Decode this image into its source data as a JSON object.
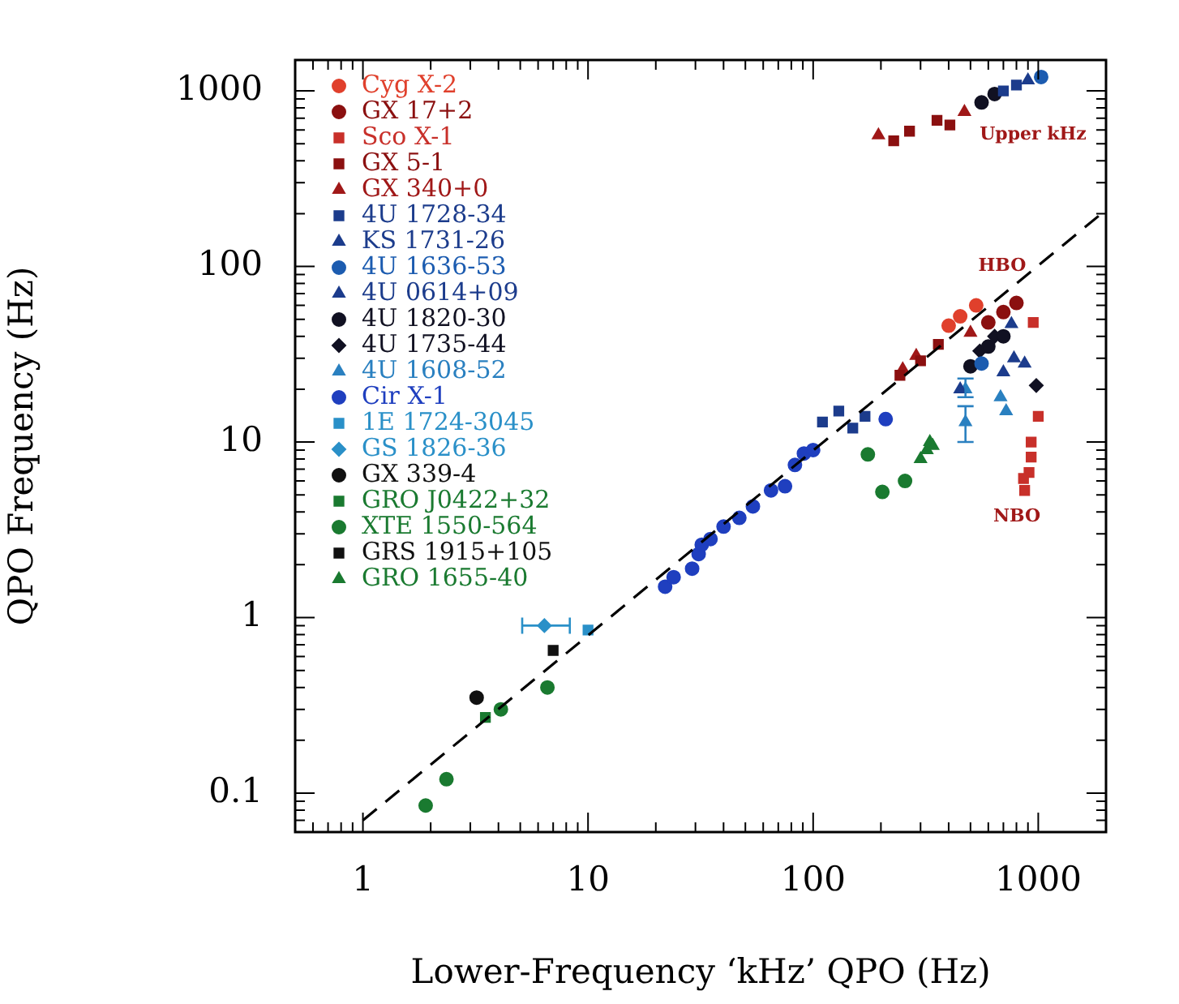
{
  "chart_data": {
    "type": "scatter",
    "xlabel": "Lower-Frequency ‘kHz’ QPO (Hz)",
    "ylabel": "QPO Frequency (Hz)",
    "log": "xy",
    "legend": "top left",
    "xlim": [
      0.5,
      2000
    ],
    "ylim": [
      0.06,
      1500
    ],
    "xticks": [
      {
        "value": 0.5,
        "label": null
      },
      {
        "value": 0.6,
        "label": null
      },
      {
        "value": 0.7,
        "label": null
      },
      {
        "value": 0.8,
        "label": null
      },
      {
        "value": 0.9,
        "label": null
      },
      1,
      {
        "value": 2,
        "label": null
      },
      {
        "value": 3,
        "label": null
      },
      {
        "value": 4,
        "label": null
      },
      {
        "value": 5,
        "label": null
      },
      {
        "value": 6,
        "label": null
      },
      {
        "value": 7,
        "label": null
      },
      {
        "value": 8,
        "label": null
      },
      {
        "value": 9,
        "label": null
      },
      10,
      {
        "value": 20,
        "label": null
      },
      {
        "value": 30,
        "label": null
      },
      {
        "value": 40,
        "label": null
      },
      {
        "value": 50,
        "label": null
      },
      {
        "value": 60,
        "label": null
      },
      {
        "value": 70,
        "label": null
      },
      {
        "value": 80,
        "label": null
      },
      {
        "value": 90,
        "label": null
      },
      100,
      {
        "value": 200,
        "label": null
      },
      {
        "value": 300,
        "label": null
      },
      {
        "value": 400,
        "label": null
      },
      {
        "value": 500,
        "label": null
      },
      {
        "value": 600,
        "label": null
      },
      {
        "value": 700,
        "label": null
      },
      {
        "value": 800,
        "label": null
      },
      {
        "value": 900,
        "label": null
      },
      1000,
      {
        "value": 2000,
        "label": null
      }
    ],
    "yticks": [
      {
        "value": 0.06,
        "label": null
      },
      {
        "value": 0.07,
        "label": null
      },
      {
        "value": 0.08,
        "label": null
      },
      {
        "value": 0.09,
        "label": null
      },
      0.1,
      {
        "value": 0.2,
        "label": null
      },
      {
        "value": 0.3,
        "label": null
      },
      {
        "value": 0.4,
        "label": null
      },
      {
        "value": 0.5,
        "label": null
      },
      {
        "value": 0.6,
        "label": null
      },
      {
        "value": 0.7,
        "label": null
      },
      {
        "value": 0.8,
        "label": null
      },
      {
        "value": 0.9,
        "label": null
      },
      1,
      {
        "value": 2,
        "label": null
      },
      {
        "value": 3,
        "label": null
      },
      {
        "value": 4,
        "label": null
      },
      {
        "value": 5,
        "label": null
      },
      {
        "value": 6,
        "label": null
      },
      {
        "value": 7,
        "label": null
      },
      {
        "value": 8,
        "label": null
      },
      {
        "value": 9,
        "label": null
      },
      10,
      {
        "value": 20,
        "label": null
      },
      {
        "value": 30,
        "label": null
      },
      {
        "value": 40,
        "label": null
      },
      {
        "value": 50,
        "label": null
      },
      {
        "value": 60,
        "label": null
      },
      {
        "value": 70,
        "label": null
      },
      {
        "value": 80,
        "label": null
      },
      {
        "value": 90,
        "label": null
      },
      100,
      {
        "value": 200,
        "label": null
      },
      {
        "value": 300,
        "label": null
      },
      {
        "value": 400,
        "label": null
      },
      {
        "value": 500,
        "label": null
      },
      {
        "value": 600,
        "label": null
      },
      {
        "value": 700,
        "label": null
      },
      {
        "value": 800,
        "label": null
      },
      {
        "value": 900,
        "label": null
      },
      1000
    ],
    "annotations": [
      "Upper kHz",
      "HBO",
      "NBO"
    ],
    "series": [
      {
        "type": "line",
        "color": "#000000",
        "marker": "none",
        "line_style": "dashed",
        "x": [
          1,
          2000
        ],
        "values": [
          0.07,
          210
        ]
      },
      {
        "name": "Cyg X-2",
        "color": "#e0402c",
        "marker": "circle",
        "x": [
          400,
          450,
          530
        ],
        "values": [
          46,
          52,
          60
        ]
      },
      {
        "name": "GX 17+2",
        "color": "#8b1010",
        "marker": "circle",
        "x": [
          600,
          700,
          800
        ],
        "values": [
          48,
          55,
          62
        ]
      },
      {
        "name": "Sco X-1",
        "color": "#c8302a",
        "marker": "square",
        "x": [
          1000,
          930,
          930,
          910,
          860,
          870,
          950
        ],
        "values": [
          14,
          10,
          8.2,
          6.7,
          6.2,
          5.3,
          48
        ]
      },
      {
        "name": "GX 5-1",
        "color": "#8b1010",
        "marker": "square",
        "x": [
          243,
          300,
          360,
          228,
          268,
          355,
          405
        ],
        "values": [
          24,
          29,
          36,
          520,
          590,
          680,
          640
        ]
      },
      {
        "name": "GX 340+0",
        "color": "#a01818",
        "marker": "triangle",
        "x": [
          287,
          250,
          500,
          195,
          470
        ],
        "values": [
          31,
          26,
          42,
          560,
          760
        ]
      },
      {
        "name": "4U 1728-34",
        "color": "#1c3c8c",
        "marker": "square",
        "x": [
          110,
          130,
          150,
          170,
          700,
          800
        ],
        "values": [
          13,
          15,
          12,
          14,
          1000,
          1080
        ]
      },
      {
        "name": "KS 1731-26",
        "color": "#1c3c8c",
        "marker": "triangle",
        "x": [
          870,
          760,
          900
        ],
        "values": [
          28,
          47,
          1150
        ]
      },
      {
        "name": "4U 1636-53",
        "color": "#1c5cb0",
        "marker": "circle",
        "x": [
          1030,
          560
        ],
        "values": [
          1200,
          28
        ]
      },
      {
        "name": "4U 0614+09",
        "color": "#1c3c8c",
        "marker": "triangle",
        "x": [
          450,
          700,
          780
        ],
        "values": [
          20,
          25,
          30
        ]
      },
      {
        "name": "4U 1820-30",
        "color": "#111122",
        "marker": "circle",
        "x": [
          500,
          600,
          700,
          560,
          640
        ],
        "values": [
          27,
          35,
          40,
          860,
          960
        ]
      },
      {
        "name": "4U 1735-44",
        "color": "#111122",
        "marker": "diamond",
        "x": [
          980,
          640,
          550
        ],
        "values": [
          21,
          40,
          33
        ]
      },
      {
        "name": "4U 1608-52",
        "color": "#2a80c0",
        "marker": "triangle",
        "x": [
          475,
          475,
          720,
          680
        ],
        "values": [
          20,
          13,
          15,
          18
        ],
        "errors": [
          [
            18,
            23
          ],
          [
            10,
            16
          ],
          null,
          null
        ]
      },
      {
        "name": "Cir X-1",
        "color": "#1f3fbf",
        "marker": "circle",
        "x": [
          22,
          24,
          29,
          31,
          32,
          35,
          40,
          47,
          54,
          65,
          75,
          83,
          91,
          100,
          210
        ],
        "values": [
          1.5,
          1.7,
          1.9,
          2.3,
          2.6,
          2.8,
          3.3,
          3.7,
          4.3,
          5.3,
          5.6,
          7.4,
          8.6,
          9,
          13.5
        ]
      },
      {
        "name": "1E 1724-3045",
        "color": "#2a90c8",
        "marker": "square",
        "x": [
          10
        ],
        "values": [
          0.85
        ]
      },
      {
        "name": "GS 1826-36",
        "color": "#2a90c8",
        "marker": "diamond",
        "x": [
          6.4
        ],
        "values": [
          0.9
        ],
        "xerrors": [
          [
            5.1,
            8.3
          ]
        ]
      },
      {
        "name": "GX 339-4",
        "color": "#111111",
        "marker": "circle",
        "x": [
          3.2
        ],
        "values": [
          0.35
        ]
      },
      {
        "name": "GRO J0422+32",
        "color": "#1a7a30",
        "marker": "square",
        "x": [
          3.5
        ],
        "values": [
          0.27
        ]
      },
      {
        "name": "XTE 1550-564",
        "color": "#1a7a30",
        "marker": "circle",
        "x": [
          1.9,
          2.35,
          4.1,
          6.6,
          175,
          203,
          256
        ],
        "values": [
          0.085,
          0.12,
          0.3,
          0.4,
          8.5,
          5.2,
          6
        ]
      },
      {
        "name": "GRS 1915+105",
        "color": "#111111",
        "marker": "square",
        "x": [
          7
        ],
        "values": [
          0.65
        ]
      },
      {
        "name": "GRO 1655-40",
        "color": "#1a7a30",
        "marker": "triangle",
        "x": [
          300,
          320,
          330,
          340
        ],
        "values": [
          8,
          9,
          10,
          9.5
        ]
      }
    ]
  }
}
